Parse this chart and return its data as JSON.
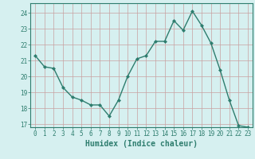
{
  "x": [
    0,
    1,
    2,
    3,
    4,
    5,
    6,
    7,
    8,
    9,
    10,
    11,
    12,
    13,
    14,
    15,
    16,
    17,
    18,
    19,
    20,
    21,
    22,
    23
  ],
  "y": [
    21.3,
    20.6,
    20.5,
    19.3,
    18.7,
    18.5,
    18.2,
    18.2,
    17.5,
    18.5,
    20.0,
    21.1,
    21.3,
    22.2,
    22.2,
    23.5,
    22.9,
    24.1,
    23.2,
    22.1,
    20.4,
    18.5,
    16.9,
    16.8
  ],
  "line_color": "#2e7d6e",
  "marker": "D",
  "marker_size": 2.0,
  "bg_color": "#d6f0f0",
  "grid_color": "#c8a0a0",
  "xlabel": "Humidex (Indice chaleur)",
  "xlim": [
    -0.5,
    23.5
  ],
  "ylim": [
    16.8,
    24.6
  ],
  "yticks": [
    17,
    18,
    19,
    20,
    21,
    22,
    23,
    24
  ],
  "xticks": [
    0,
    1,
    2,
    3,
    4,
    5,
    6,
    7,
    8,
    9,
    10,
    11,
    12,
    13,
    14,
    15,
    16,
    17,
    18,
    19,
    20,
    21,
    22,
    23
  ],
  "tick_color": "#2e7d6e",
  "tick_labelsize": 5.5,
  "xlabel_fontsize": 7.0,
  "linewidth": 1.0
}
